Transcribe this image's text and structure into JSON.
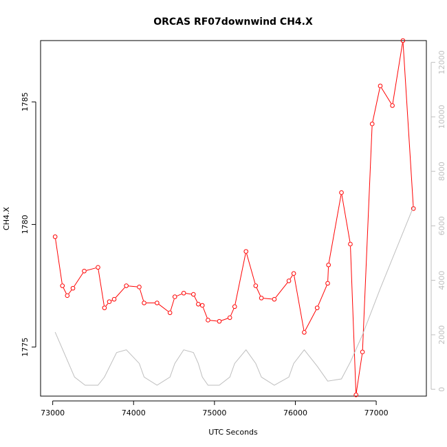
{
  "chart_data": {
    "type": "line",
    "title": "ORCAS RF07downwind CH4.X",
    "xlabel": "UTC Seconds",
    "ylabel": "CH4.X",
    "xlim": [
      72850,
      77620
    ],
    "ylim": [
      1773.0,
      1787.5
    ],
    "y2lim": [
      -250,
      12800
    ],
    "x_ticks": [
      73000,
      74000,
      75000,
      76000,
      77000
    ],
    "y_ticks": [
      1775,
      1780,
      1785
    ],
    "y2_ticks": [
      0,
      2000,
      4000,
      6000,
      8000,
      10000,
      12000
    ],
    "grid": false,
    "legend": "none",
    "colors": {
      "primary": "#ff0000",
      "secondary": "#bebebe"
    },
    "series": [
      {
        "axis": "left",
        "style": "line+open-circles",
        "x": [
          73030,
          73120,
          73180,
          73250,
          73390,
          73560,
          73640,
          73700,
          73760,
          73910,
          74070,
          74130,
          74290,
          74450,
          74510,
          74620,
          74740,
          74800,
          74850,
          74920,
          75060,
          75190,
          75250,
          75390,
          75510,
          75580,
          75740,
          75920,
          75980,
          76110,
          76270,
          76400,
          76410,
          76570,
          76680,
          76750,
          76830,
          76950,
          77050,
          77200,
          77330,
          77460
        ],
        "y": [
          1779.5,
          1777.5,
          1777.1,
          1777.4,
          1778.1,
          1778.25,
          1776.6,
          1776.85,
          1776.95,
          1777.5,
          1777.45,
          1776.8,
          1776.8,
          1776.4,
          1777.05,
          1777.2,
          1777.15,
          1776.75,
          1776.7,
          1776.1,
          1776.05,
          1776.2,
          1776.65,
          1778.9,
          1777.5,
          1777.0,
          1776.95,
          1777.7,
          1778.0,
          1775.6,
          1776.6,
          1777.6,
          1778.35,
          1781.3,
          1779.2,
          1773.05,
          1774.8,
          1784.1,
          1785.65,
          1784.85,
          1787.5,
          1780.65
        ]
      },
      {
        "axis": "right",
        "style": "line",
        "x": [
          73030,
          73270,
          73400,
          73560,
          73640,
          73790,
          73910,
          74070,
          74130,
          74290,
          74450,
          74510,
          74620,
          74740,
          74800,
          74850,
          74920,
          75060,
          75190,
          75250,
          75390,
          75510,
          75580,
          75740,
          75920,
          75980,
          76110,
          76270,
          76400,
          76570,
          76680,
          76830,
          77050,
          77460
        ],
        "y": [
          2100,
          450,
          150,
          150,
          450,
          1350,
          1450,
          950,
          450,
          150,
          450,
          950,
          1450,
          1350,
          950,
          450,
          150,
          150,
          450,
          950,
          1450,
          950,
          450,
          150,
          450,
          950,
          1450,
          850,
          300,
          380,
          1000,
          2000,
          3700,
          6700
        ]
      }
    ]
  }
}
